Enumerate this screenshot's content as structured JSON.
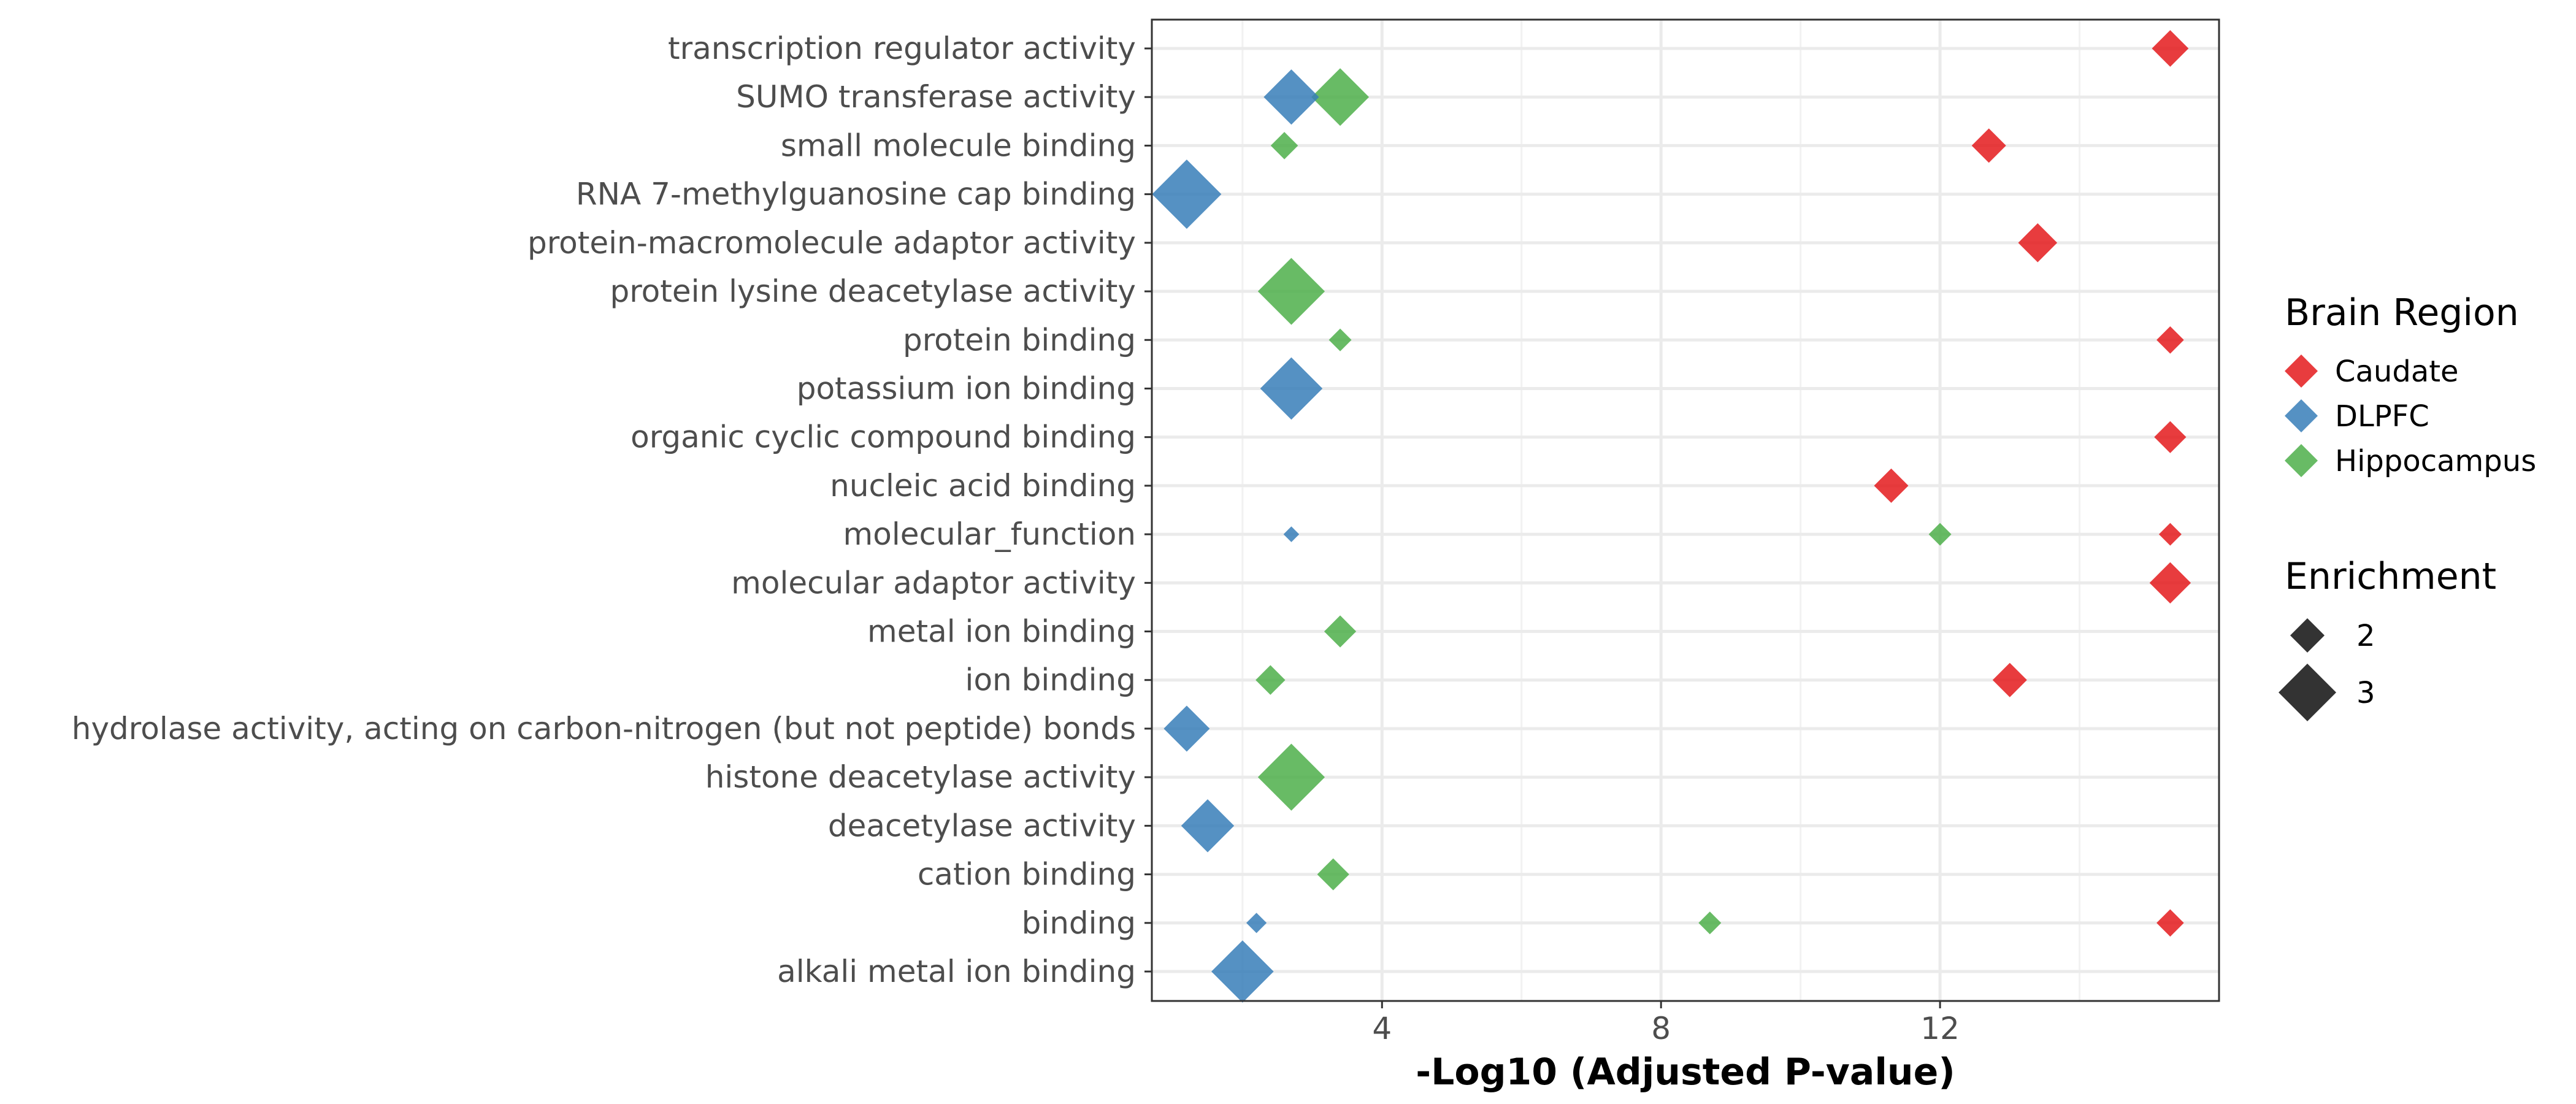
{
  "chart_data": {
    "type": "scatter",
    "title": "",
    "xlabel": "-Log10 (Adjusted P-value)",
    "ylabel": "",
    "xlim": [
      0.7,
      16.0
    ],
    "xticks": [
      4,
      8,
      12
    ],
    "grid": true,
    "categories": [
      "transcription regulator activity",
      "SUMO transferase activity",
      "small molecule binding",
      "RNA 7-methylguanosine cap binding",
      "protein-macromolecule adaptor activity",
      "protein lysine deacetylase activity",
      "protein binding",
      "potassium ion binding",
      "organic cyclic compound binding",
      "nucleic acid binding",
      "molecular_function",
      "molecular adaptor activity",
      "metal ion binding",
      "ion binding",
      "hydrolase activity, acting on carbon-nitrogen (but not peptide) bonds",
      "histone deacetylase activity",
      "deacetylase activity",
      "cation binding",
      "binding",
      "alkali metal ion binding"
    ],
    "series": [
      {
        "name": "Caudate",
        "color": "#e41a1c",
        "points": [
          {
            "category": "transcription regulator activity",
            "x": 15.3,
            "enrichment": 2.1
          },
          {
            "category": "small molecule binding",
            "x": 12.7,
            "enrichment": 2.0
          },
          {
            "category": "protein-macromolecule adaptor activity",
            "x": 13.4,
            "enrichment": 2.2
          },
          {
            "category": "protein binding",
            "x": 15.3,
            "enrichment": 1.7
          },
          {
            "category": "organic cyclic compound binding",
            "x": 15.3,
            "enrichment": 1.9
          },
          {
            "category": "nucleic acid binding",
            "x": 11.3,
            "enrichment": 2.0
          },
          {
            "category": "molecular_function",
            "x": 15.3,
            "enrichment": 1.5
          },
          {
            "category": "molecular adaptor activity",
            "x": 15.3,
            "enrichment": 2.3
          },
          {
            "category": "ion binding",
            "x": 13.0,
            "enrichment": 2.0
          },
          {
            "category": "binding",
            "x": 15.3,
            "enrichment": 1.7
          }
        ]
      },
      {
        "name": "DLPFC",
        "color": "#377eb8",
        "points": [
          {
            "category": "SUMO transferase activity",
            "x": 2.7,
            "enrichment": 2.9
          },
          {
            "category": "RNA 7-methylguanosine cap binding",
            "x": 1.2,
            "enrichment": 3.5
          },
          {
            "category": "potassium ion binding",
            "x": 2.7,
            "enrichment": 3.2
          },
          {
            "category": "molecular_function",
            "x": 2.7,
            "enrichment": 1.2
          },
          {
            "category": "hydrolase activity, acting on carbon-nitrogen (but not peptide) bonds",
            "x": 1.2,
            "enrichment": 2.5
          },
          {
            "category": "deacetylase activity",
            "x": 1.5,
            "enrichment": 2.8
          },
          {
            "category": "binding",
            "x": 2.2,
            "enrichment": 1.4
          },
          {
            "category": "alkali metal ion binding",
            "x": 2.0,
            "enrichment": 3.2
          }
        ]
      },
      {
        "name": "Hippocampus",
        "color": "#4daf4a",
        "points": [
          {
            "category": "SUMO transferase activity",
            "x": 3.4,
            "enrichment": 3.0
          },
          {
            "category": "small molecule binding",
            "x": 2.6,
            "enrichment": 1.7
          },
          {
            "category": "protein lysine deacetylase activity",
            "x": 2.7,
            "enrichment": 3.4
          },
          {
            "category": "protein binding",
            "x": 3.4,
            "enrichment": 1.5
          },
          {
            "category": "molecular_function",
            "x": 12.0,
            "enrichment": 1.5
          },
          {
            "category": "metal ion binding",
            "x": 3.4,
            "enrichment": 1.9
          },
          {
            "category": "ion binding",
            "x": 2.4,
            "enrichment": 1.8
          },
          {
            "category": "histone deacetylase activity",
            "x": 2.7,
            "enrichment": 3.4
          },
          {
            "category": "cation binding",
            "x": 3.3,
            "enrichment": 1.9
          },
          {
            "category": "binding",
            "x": 8.7,
            "enrichment": 1.5
          }
        ]
      }
    ],
    "legend": {
      "color_title": "Brain Region",
      "color_entries": [
        "Caudate",
        "DLPFC",
        "Hippocampus"
      ],
      "size_title": "Enrichment",
      "size_entries": [
        2,
        3
      ],
      "size_symbol_color": "#333333",
      "placement": "right"
    }
  }
}
